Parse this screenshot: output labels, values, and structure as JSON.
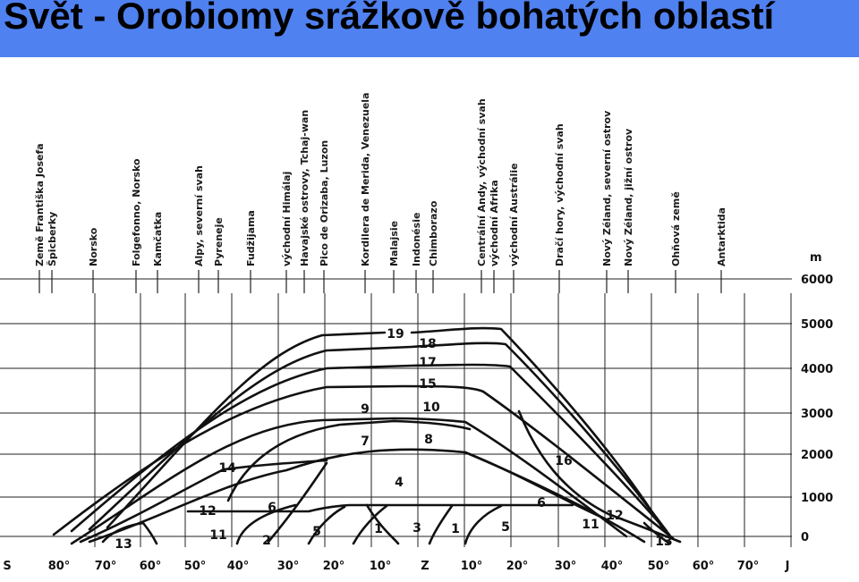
{
  "title": "Svět - Orobiomy srážkově bohatých oblastí",
  "height_unit": "m",
  "height_labels": [
    "6000",
    "5000",
    "4000",
    "3000",
    "2000",
    "1000",
    "0"
  ],
  "lat_labels": [
    "S",
    "80°",
    "70°",
    "60°",
    "50°",
    "40°",
    "30°",
    "20°",
    "10°",
    "Z",
    "10°",
    "20°",
    "30°",
    "40°",
    "50°",
    "60°",
    "70°",
    "J"
  ],
  "regions": [
    "Země Františka Josefa",
    "Špicberky",
    "Norsko",
    "Folgefonno, Norsko",
    "Kamčatka",
    "Alpy, severní svah",
    "Pyreneje",
    "Fudžijama",
    "východní Himálaj",
    "Havajské ostrovy, Tchaj-wan",
    "Pico de Orizaba, Luzon",
    "Kordilera de Merida, Venezuela",
    "Malajsie",
    "Indonésie",
    "Chimborazo",
    "Centrální Andy, východní svah",
    "východní Afrika",
    "východní Austrálie",
    "Dračí hory, východní svah",
    "Nový Zéland, severní ostrov",
    "Nový Zéland, jižní ostrov",
    "Ohňová země",
    "Antarktida"
  ],
  "zone_numbers": [
    "19",
    "18",
    "17",
    "15",
    "9",
    "10",
    "7",
    "8",
    "4",
    "14",
    "16",
    "12",
    "6",
    "6",
    "12",
    "11",
    "11",
    "13",
    "13",
    "2",
    "5",
    "1",
    "3",
    "1",
    "5"
  ]
}
